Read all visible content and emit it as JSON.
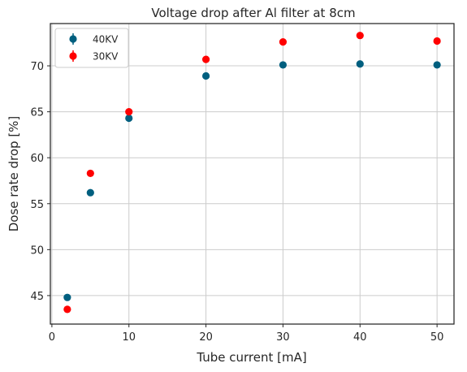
{
  "chart_data": {
    "type": "scatter",
    "title": "Voltage drop after Al filter at 8cm",
    "xlabel": "Tube current [mA]",
    "ylabel": "Dose rate drop [%]",
    "xlim": [
      -0.2,
      52.2
    ],
    "ylim": [
      41.9,
      74.6
    ],
    "xticks": [
      0,
      10,
      20,
      30,
      40,
      50
    ],
    "yticks": [
      45,
      50,
      55,
      60,
      65,
      70
    ],
    "grid": true,
    "legend_position": "top-left",
    "series": [
      {
        "name": "40KV",
        "color": "#005f7f",
        "x": [
          2,
          5,
          10,
          20,
          30,
          40,
          50
        ],
        "y": [
          44.8,
          56.2,
          64.3,
          68.9,
          70.1,
          70.2,
          70.1
        ]
      },
      {
        "name": "30KV",
        "color": "#ff0000",
        "x": [
          2,
          5,
          10,
          20,
          30,
          40,
          50
        ],
        "y": [
          43.5,
          58.3,
          65.0,
          70.7,
          72.6,
          73.3,
          72.7
        ]
      }
    ]
  }
}
